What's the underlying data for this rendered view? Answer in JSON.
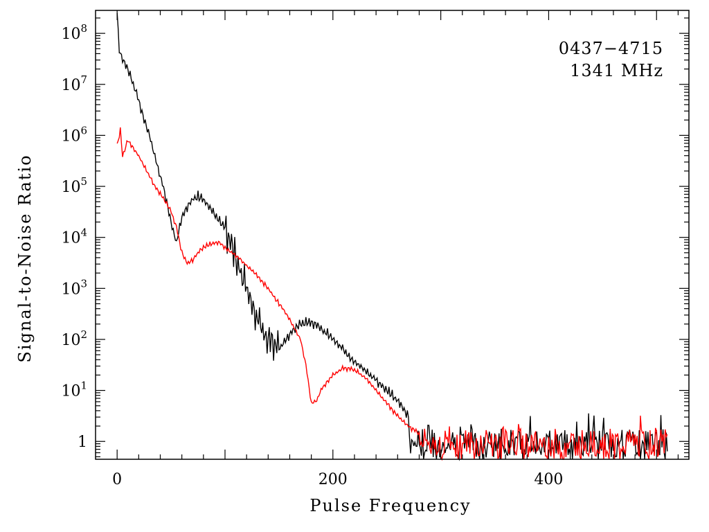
{
  "chart_data": {
    "type": "line",
    "xlabel": "Pulse Frequency",
    "ylabel": "Signal-to-Noise Ratio",
    "annotations": [
      "0437−4715",
      "1341 MHz"
    ],
    "x_range": [
      -20,
      530
    ],
    "y_range_log10": [
      -0.35,
      8.45
    ],
    "y_scale": "log",
    "x_ticks": [
      0,
      200,
      400
    ],
    "x_tick_labels": [
      "0",
      "200",
      "400"
    ],
    "y_ticks": [
      {
        "value": 0,
        "base": "1",
        "exp": ""
      },
      {
        "value": 1,
        "base": "10",
        "exp": "1"
      },
      {
        "value": 2,
        "base": "10",
        "exp": "2"
      },
      {
        "value": 3,
        "base": "10",
        "exp": "3"
      },
      {
        "value": 4,
        "base": "10",
        "exp": "4"
      },
      {
        "value": 5,
        "base": "10",
        "exp": "5"
      },
      {
        "value": 6,
        "base": "10",
        "exp": "6"
      },
      {
        "value": 7,
        "base": "10",
        "exp": "7"
      },
      {
        "value": 8,
        "base": "10",
        "exp": "8"
      }
    ],
    "grid": false,
    "series": [
      {
        "color": "#000000",
        "x": [
          0,
          2,
          5,
          10,
          15,
          20,
          25,
          30,
          35,
          40,
          45,
          50,
          55,
          60,
          65,
          70,
          75,
          80,
          85,
          90,
          95,
          100,
          110,
          120,
          130,
          140,
          150,
          160,
          170,
          180,
          190,
          200,
          210,
          220,
          230,
          240,
          250,
          260,
          270
        ],
        "log10_y": [
          8.4,
          7.65,
          7.5,
          7.3,
          7.0,
          6.7,
          6.3,
          6.0,
          5.6,
          5.2,
          4.8,
          4.3,
          3.9,
          4.4,
          4.6,
          4.75,
          4.8,
          4.75,
          4.6,
          4.45,
          4.3,
          4.2,
          3.6,
          3.0,
          2.4,
          2.0,
          1.8,
          2.1,
          2.3,
          2.35,
          2.2,
          2.0,
          1.8,
          1.55,
          1.4,
          1.2,
          1.0,
          0.8,
          0.5
        ]
      },
      {
        "color": "#ff0000",
        "x": [
          0,
          3,
          5,
          10,
          15,
          20,
          25,
          30,
          35,
          40,
          45,
          50,
          55,
          60,
          65,
          70,
          75,
          80,
          85,
          90,
          95,
          100,
          110,
          120,
          130,
          140,
          150,
          160,
          170,
          175,
          180,
          185,
          190,
          200,
          210,
          220,
          230,
          240,
          250,
          260,
          270,
          280
        ],
        "log10_y": [
          5.8,
          6.1,
          5.6,
          5.9,
          5.75,
          5.6,
          5.4,
          5.2,
          5.0,
          4.85,
          4.7,
          4.5,
          4.2,
          3.7,
          3.5,
          3.55,
          3.7,
          3.8,
          3.85,
          3.9,
          3.9,
          3.8,
          3.65,
          3.45,
          3.25,
          3.0,
          2.7,
          2.4,
          2.0,
          1.5,
          0.75,
          0.8,
          1.05,
          1.3,
          1.45,
          1.4,
          1.25,
          1.0,
          0.75,
          0.5,
          0.3,
          0.15
        ]
      }
    ],
    "noise_floor": {
      "x_start": 280,
      "x_end": 510,
      "log10_center": 0.0,
      "log10_spread": 0.28
    }
  }
}
